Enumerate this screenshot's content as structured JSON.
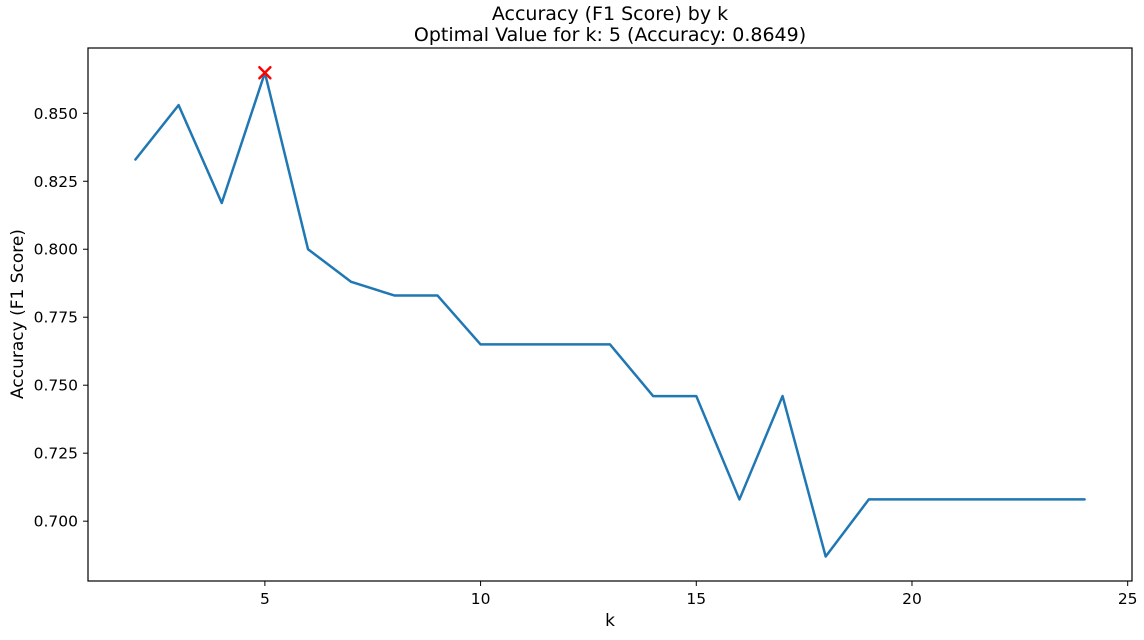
{
  "chart_data": {
    "type": "line",
    "title": "Accuracy (F1 Score) by k",
    "subtitle": "Optimal Value for k: 5 (Accuracy: 0.8649)",
    "xlabel": "k",
    "ylabel": "Accuracy (F1 Score)",
    "x": [
      2,
      3,
      4,
      5,
      6,
      7,
      8,
      9,
      10,
      11,
      12,
      13,
      14,
      15,
      16,
      17,
      18,
      19,
      20,
      21,
      22,
      23,
      24
    ],
    "y": [
      0.833,
      0.853,
      0.817,
      0.8649,
      0.8,
      0.788,
      0.783,
      0.783,
      0.765,
      0.765,
      0.765,
      0.765,
      0.746,
      0.746,
      0.708,
      0.746,
      0.687,
      0.708,
      0.708,
      0.708,
      0.708,
      0.708,
      0.708
    ],
    "optimal_point": {
      "x": 5,
      "y": 0.8649,
      "marker": "x",
      "label_k": "5",
      "label_accuracy": "0.8649"
    },
    "xlim": [
      0.9,
      25.1
    ],
    "ylim": [
      0.678,
      0.874
    ],
    "xticks": [
      5,
      10,
      15,
      20,
      25
    ],
    "xtick_labels": [
      "5",
      "10",
      "15",
      "20",
      "25"
    ],
    "yticks": [
      0.7,
      0.725,
      0.75,
      0.775,
      0.8,
      0.825,
      0.85
    ],
    "ytick_labels": [
      "0.700",
      "0.725",
      "0.750",
      "0.775",
      "0.800",
      "0.825",
      "0.850"
    ],
    "line_color": "#1f77b4",
    "marker_color": "#ff0000",
    "axis_color": "#000000",
    "background": "#ffffff",
    "grid": false,
    "legend": null
  }
}
